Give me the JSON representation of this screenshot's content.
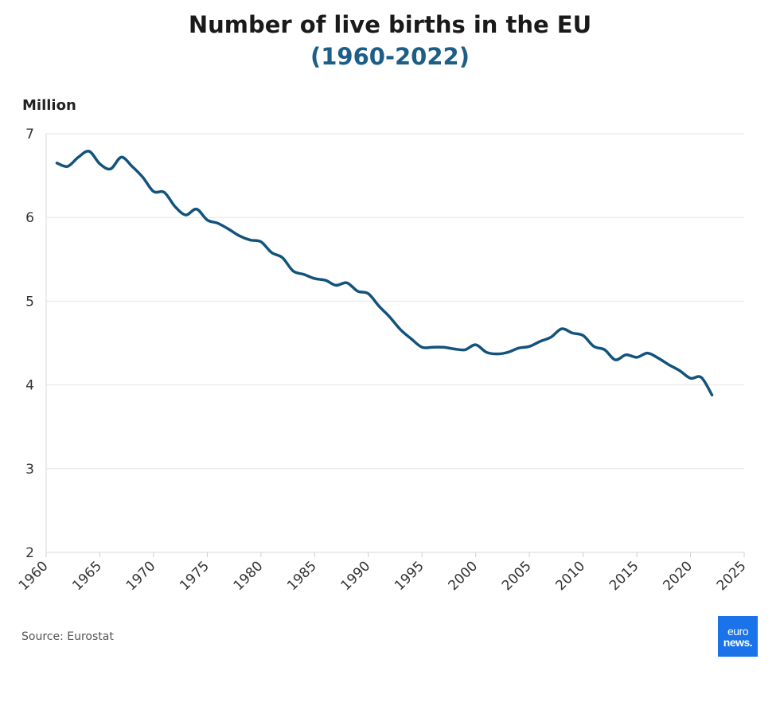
{
  "title": "Number of live births in the EU",
  "subtitle": "(1960-2022)",
  "unit_label": "Million",
  "source": "Source: Eurostat",
  "logo": {
    "line1": "euro",
    "line2": "news."
  },
  "colors": {
    "line": "#12537c",
    "subtitle": "#1d5e86",
    "grid": "#e6e6e6",
    "logo_bg": "#1a73e8"
  },
  "chart_data": {
    "type": "line",
    "title": "Number of live births in the EU",
    "subtitle": "(1960-2022)",
    "xlabel": "",
    "ylabel": "Million",
    "xlim": [
      1960,
      2025
    ],
    "ylim": [
      2,
      7
    ],
    "x_ticks": [
      1960,
      1965,
      1970,
      1975,
      1980,
      1985,
      1990,
      1995,
      2000,
      2005,
      2010,
      2015,
      2020,
      2025
    ],
    "y_ticks": [
      2,
      3,
      4,
      5,
      6,
      7
    ],
    "grid": true,
    "series": [
      {
        "name": "Live births",
        "x": [
          1961,
          1962,
          1963,
          1964,
          1965,
          1966,
          1967,
          1968,
          1969,
          1970,
          1971,
          1972,
          1973,
          1974,
          1975,
          1976,
          1977,
          1978,
          1979,
          1980,
          1981,
          1982,
          1983,
          1984,
          1985,
          1986,
          1987,
          1988,
          1989,
          1990,
          1991,
          1992,
          1993,
          1994,
          1995,
          1996,
          1997,
          1998,
          1999,
          2000,
          2001,
          2002,
          2003,
          2004,
          2005,
          2006,
          2007,
          2008,
          2009,
          2010,
          2011,
          2012,
          2013,
          2014,
          2015,
          2016,
          2017,
          2018,
          2019,
          2020,
          2021,
          2022
        ],
        "values": [
          6.65,
          6.61,
          6.72,
          6.79,
          6.64,
          6.58,
          6.72,
          6.61,
          6.48,
          6.31,
          6.3,
          6.13,
          6.03,
          6.1,
          5.97,
          5.93,
          5.86,
          5.78,
          5.73,
          5.71,
          5.58,
          5.52,
          5.36,
          5.32,
          5.27,
          5.25,
          5.19,
          5.22,
          5.12,
          5.09,
          4.94,
          4.81,
          4.66,
          4.55,
          4.45,
          4.45,
          4.45,
          4.43,
          4.42,
          4.48,
          4.39,
          4.37,
          4.39,
          4.44,
          4.46,
          4.52,
          4.57,
          4.67,
          4.62,
          4.59,
          4.46,
          4.42,
          4.3,
          4.36,
          4.33,
          4.38,
          4.32,
          4.24,
          4.17,
          4.08,
          4.09,
          3.88
        ]
      }
    ]
  }
}
